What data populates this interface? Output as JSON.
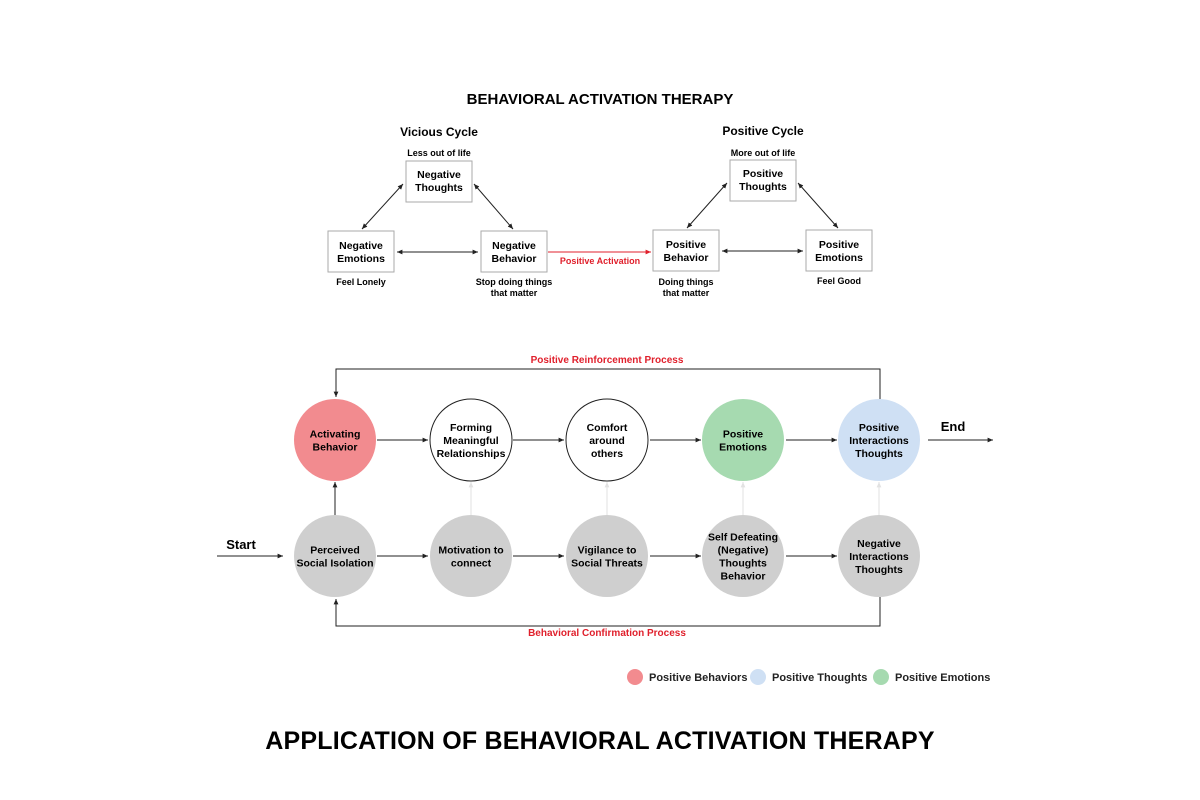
{
  "title": "BEHAVIORAL ACTIVATION THERAPY",
  "vicious_cycle": {
    "title": "Vicious Cycle",
    "top_caption": "Less out of life",
    "nodes": {
      "thoughts": [
        "Negative",
        "Thoughts"
      ],
      "emotions": [
        "Negative",
        "Emotions"
      ],
      "behavior": [
        "Negative",
        "Behavior"
      ]
    },
    "emotions_caption": "Feel Lonely",
    "behavior_caption": [
      "Stop doing things",
      "that matter"
    ]
  },
  "positive_cycle": {
    "title": "Positive Cycle",
    "top_caption": "More out of life",
    "nodes": {
      "thoughts": [
        "Positive",
        "Thoughts"
      ],
      "behavior": [
        "Positive",
        "Behavior"
      ],
      "emotions": [
        "Positive",
        "Emotions"
      ]
    },
    "behavior_caption": [
      "Doing things",
      "that matter"
    ],
    "emotions_caption": "Feel Good"
  },
  "positive_activation_label": "Positive Activation",
  "flow": {
    "reinforcement_label": "Positive Reinforcement Process",
    "confirmation_label": "Behavioral Confirmation Process",
    "start_label": "Start",
    "end_label": "End",
    "top_row": [
      {
        "lines": [
          "Activating",
          "Behavior"
        ],
        "kind": "behavior"
      },
      {
        "lines": [
          "Forming",
          "Meaningful",
          "Relationships"
        ],
        "kind": "outline"
      },
      {
        "lines": [
          "Comfort",
          "around",
          "others"
        ],
        "kind": "outline"
      },
      {
        "lines": [
          "Positive",
          "Emotions"
        ],
        "kind": "emotion"
      },
      {
        "lines": [
          "Positive",
          "Interactions",
          "Thoughts"
        ],
        "kind": "thought"
      }
    ],
    "bottom_row": [
      {
        "lines": [
          "Perceived",
          "Social Isolation"
        ]
      },
      {
        "lines": [
          "Motivation to",
          "connect"
        ]
      },
      {
        "lines": [
          "Vigilance to",
          "Social Threats"
        ]
      },
      {
        "lines": [
          "Self Defeating",
          "(Negative)",
          "Thoughts",
          "Behavior"
        ]
      },
      {
        "lines": [
          "Negative",
          "Interactions",
          "Thoughts"
        ]
      }
    ]
  },
  "legend": [
    {
      "label": "Positive Behaviors",
      "color": "#f28b8f"
    },
    {
      "label": "Positive Thoughts",
      "color": "#cfe0f4"
    },
    {
      "label": "Positive Emotions",
      "color": "#a6dab0"
    }
  ],
  "colors": {
    "behavior": "#f28b8f",
    "thought": "#cfe0f4",
    "emotion": "#a6dab0",
    "gray": "#cfcfcf",
    "accent_red": "#e0202c"
  },
  "bottom_title": "APPLICATION OF BEHAVIORAL ACTIVATION THERAPY"
}
